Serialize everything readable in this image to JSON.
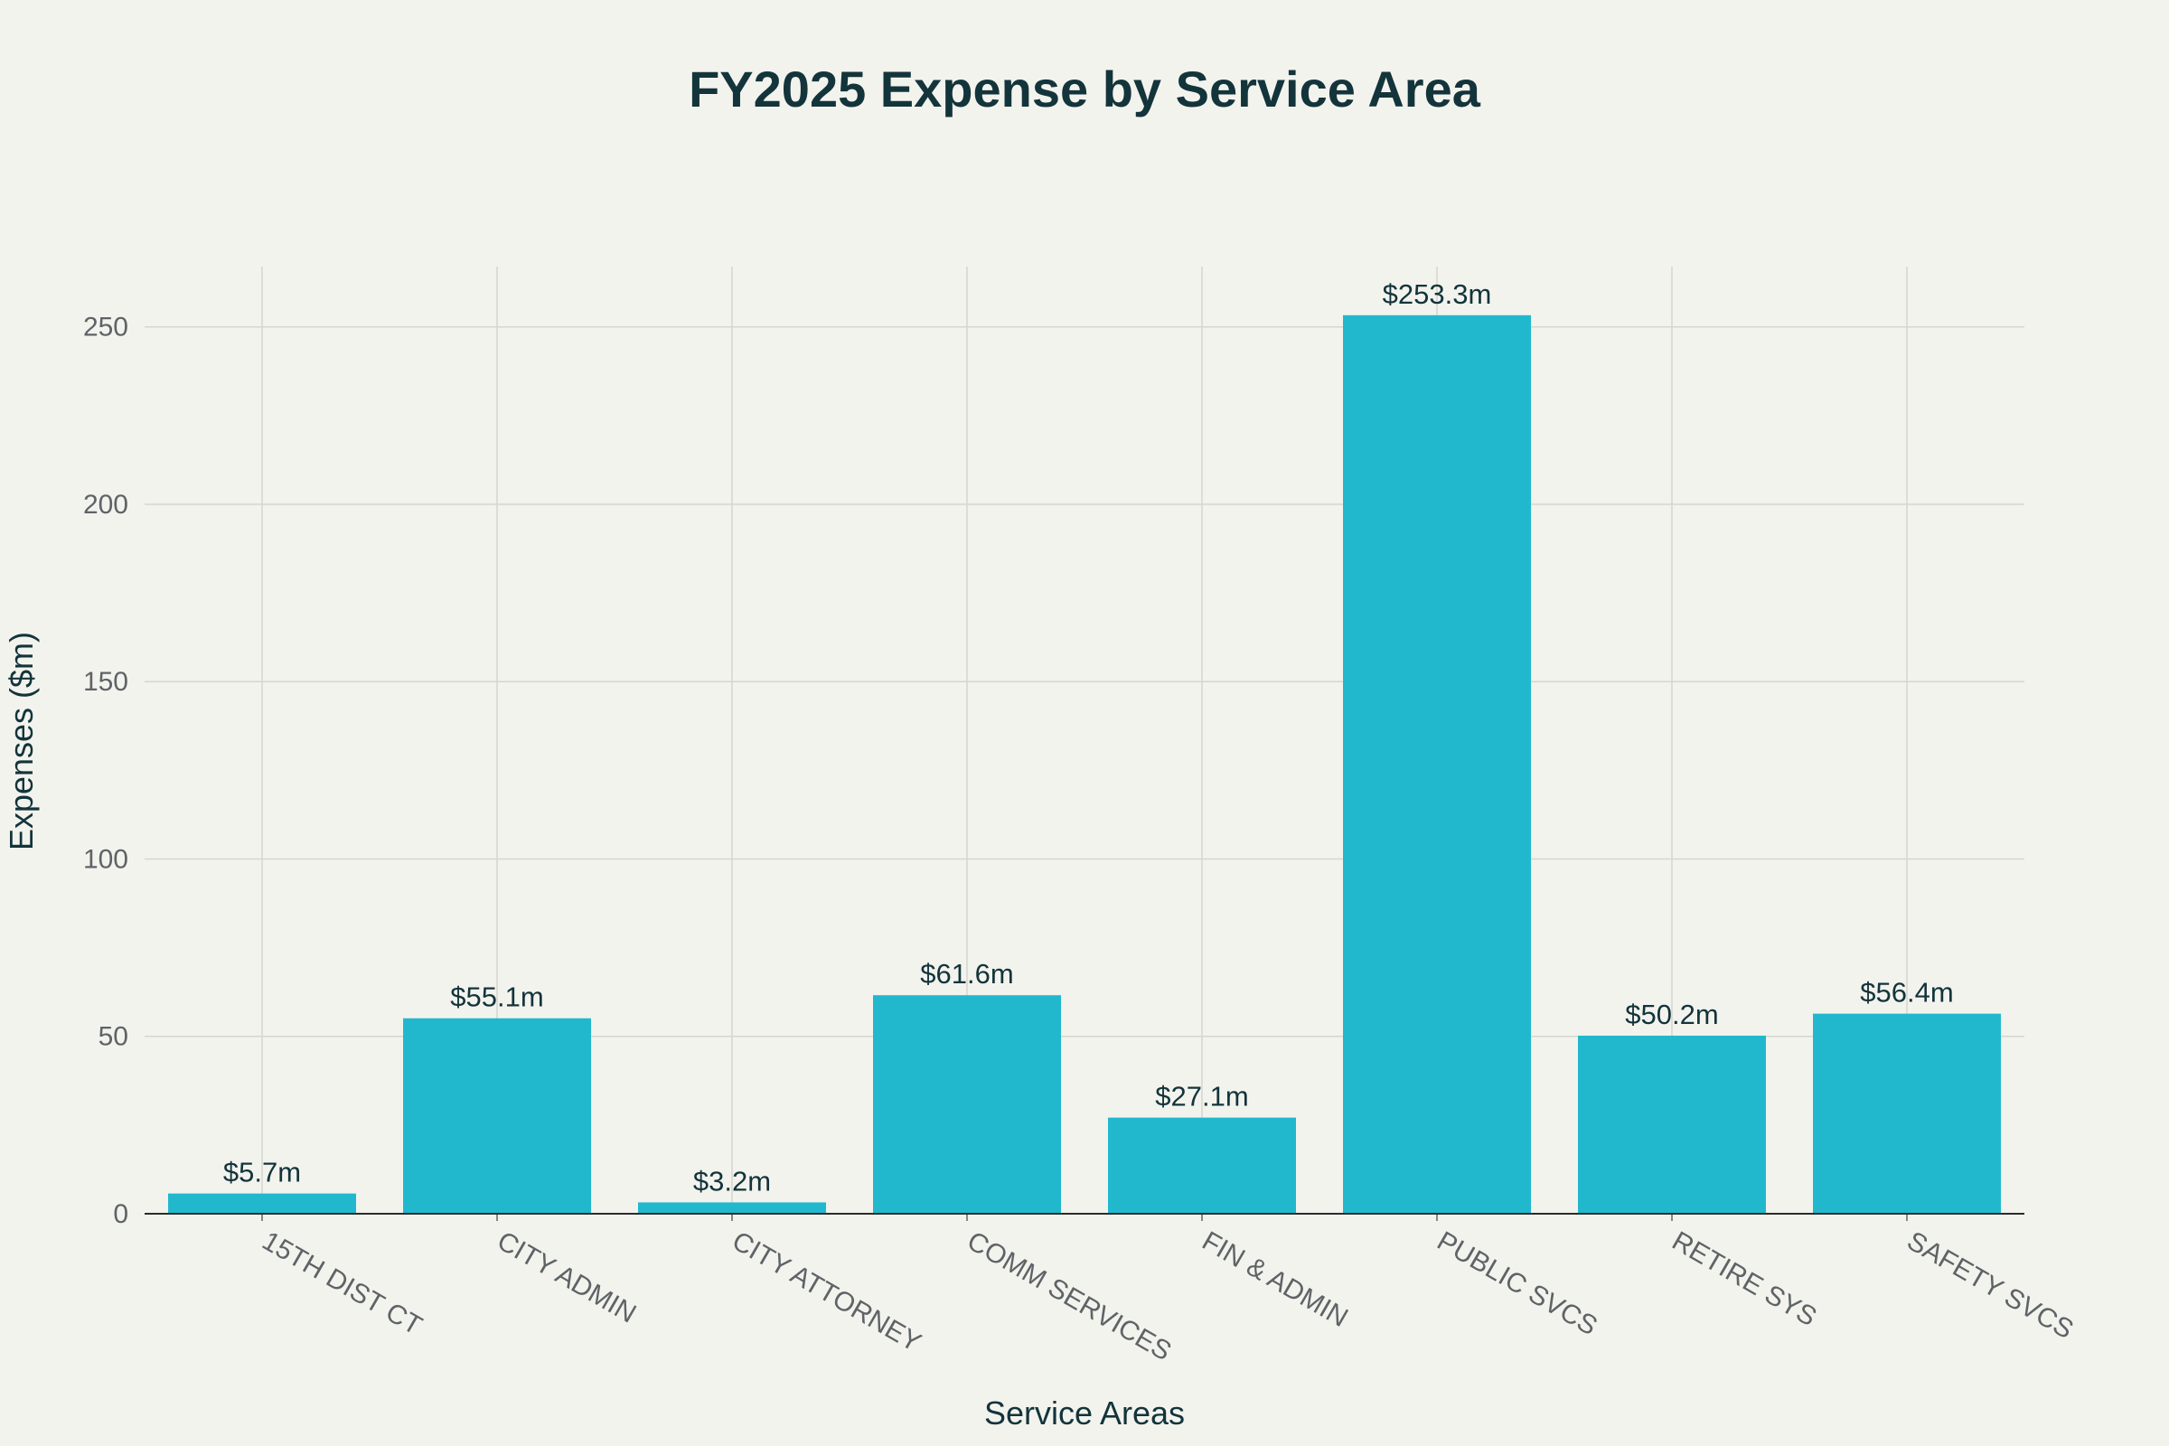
{
  "chart_data": {
    "type": "bar",
    "title": "FY2025 Expense by Service Area",
    "xlabel": "Service Areas",
    "ylabel": "Expenses ($m)",
    "categories": [
      "15TH DIST CT",
      "CITY ADMIN",
      "CITY ATTORNEY",
      "COMM SERVICES",
      "FIN & ADMIN",
      "PUBLIC SVCS",
      "RETIRE SYS",
      "SAFETY SVCS"
    ],
    "values": [
      5.7,
      55.1,
      3.2,
      61.6,
      27.1,
      253.3,
      50.2,
      56.4
    ],
    "data_labels": [
      "$5.7m",
      "$55.1m",
      "$3.2m",
      "$61.6m",
      "$27.1m",
      "$253.3m",
      "$50.2m",
      "$56.4m"
    ],
    "yticks": [
      0,
      50,
      100,
      150,
      200,
      250
    ],
    "ylim": [
      0,
      267
    ],
    "grid": true,
    "legend": "none",
    "colors": {
      "bar": "#21b8cd",
      "background": "#f3f3ee",
      "title": "#13343b",
      "grid": "#d6d6d1"
    }
  }
}
